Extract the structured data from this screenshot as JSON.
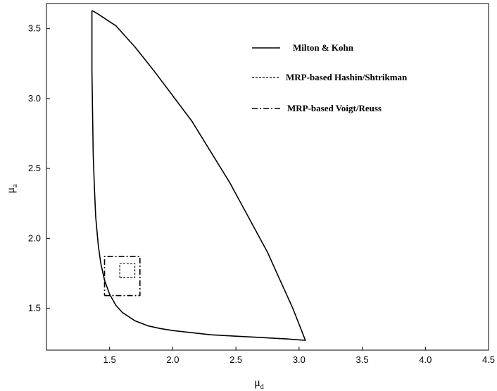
{
  "chart_data": {
    "type": "line",
    "xlabel": "μ",
    "xlabel_sub": "d",
    "ylabel": "μ",
    "ylabel_sub": "a",
    "xlim": [
      1.0,
      4.5
    ],
    "ylim": [
      1.2,
      3.68
    ],
    "xticks": [
      "1.5",
      "2.0",
      "2.5",
      "3.0",
      "3.5",
      "4.0",
      "4.5"
    ],
    "yticks": [
      "1.5",
      "2.0",
      "2.5",
      "3.0",
      "3.5"
    ],
    "grid": false,
    "legend_position": "top-right",
    "series": [
      {
        "name": "Milton & Kohn",
        "style": "solid",
        "x": [
          1.36,
          1.36,
          1.365,
          1.37,
          1.38,
          1.39,
          1.41,
          1.43,
          1.46,
          1.5,
          1.55,
          1.6,
          1.7,
          1.8,
          1.9,
          2.0,
          2.15,
          2.3,
          2.5,
          2.7,
          2.9,
          3.05,
          2.95,
          2.85,
          2.75,
          2.6,
          2.45,
          2.3,
          2.15,
          2.0,
          1.85,
          1.7,
          1.55,
          1.45,
          1.4,
          1.36
        ],
        "y": [
          3.63,
          3.2,
          2.9,
          2.6,
          2.35,
          2.15,
          1.95,
          1.82,
          1.7,
          1.6,
          1.52,
          1.47,
          1.41,
          1.375,
          1.355,
          1.34,
          1.325,
          1.31,
          1.3,
          1.29,
          1.28,
          1.27,
          1.5,
          1.7,
          1.9,
          2.15,
          2.4,
          2.62,
          2.84,
          3.02,
          3.2,
          3.37,
          3.52,
          3.58,
          3.61,
          3.63
        ]
      },
      {
        "name": "MRP-based Hashin/Shtrikman",
        "style": "dashed",
        "x": [
          1.58,
          1.7,
          1.7,
          1.58,
          1.58
        ],
        "y": [
          1.72,
          1.72,
          1.82,
          1.82,
          1.72
        ]
      },
      {
        "name": "MRP-based Voigt/Reuss",
        "style": "dashdot",
        "x": [
          1.46,
          1.74,
          1.74,
          1.46,
          1.46
        ],
        "y": [
          1.59,
          1.59,
          1.87,
          1.87,
          1.59
        ]
      }
    ]
  }
}
